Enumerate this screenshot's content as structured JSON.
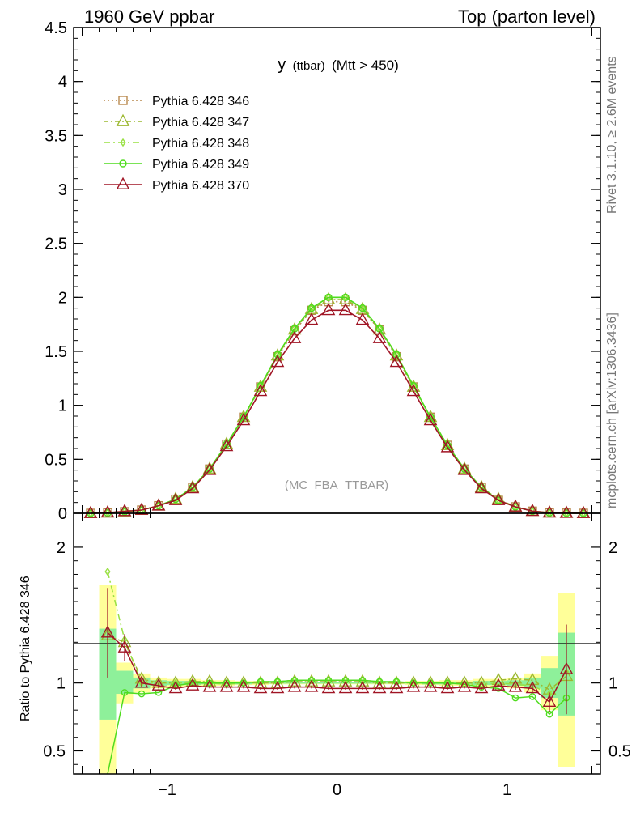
{
  "header": {
    "left": "1960 GeV ppbar",
    "right": "Top (parton level)"
  },
  "side_labels": {
    "rivet": "Rivet 3.1.10, ≥ 2.6M events",
    "mcplots": "mcplots.cern.ch [arXiv:1306.3436]"
  },
  "chart_data": [
    {
      "type": "line",
      "title": "y (ttbar) (Mtt > 450)",
      "title_main": "y",
      "title_sub": "(ttbar)",
      "title_rest": "(Mtt > 450)",
      "annotation": "(MC_FBA_TTBAR)",
      "xlabel": "",
      "ylabel": "",
      "xlim": [
        -1.55,
        1.55
      ],
      "ylim": [
        0,
        4.5
      ],
      "yticks": [
        "0",
        "0.5",
        "1",
        "1.5",
        "2",
        "2.5",
        "3",
        "3.5",
        "4",
        "4.5"
      ],
      "x": [
        -1.45,
        -1.35,
        -1.25,
        -1.15,
        -1.05,
        -0.95,
        -0.85,
        -0.75,
        -0.65,
        -0.55,
        -0.45,
        -0.35,
        -0.25,
        -0.15,
        -0.05,
        0.05,
        0.15,
        0.25,
        0.35,
        0.45,
        0.55,
        0.65,
        0.75,
        0.85,
        0.95,
        1.05,
        1.15,
        1.25,
        1.35,
        1.45
      ],
      "series": [
        {
          "name": "Pythia 6.428 346",
          "color": "#b8884d",
          "dash": "2,3",
          "marker": "square",
          "values": [
            0.0,
            0.005,
            0.015,
            0.03,
            0.07,
            0.13,
            0.24,
            0.41,
            0.64,
            0.89,
            1.17,
            1.45,
            1.69,
            1.88,
            1.96,
            1.96,
            1.88,
            1.7,
            1.45,
            1.17,
            0.89,
            0.63,
            0.41,
            0.24,
            0.12,
            0.06,
            0.02,
            0.005,
            0.002,
            0.0
          ]
        },
        {
          "name": "Pythia 6.428 347",
          "color": "#9cb830",
          "dash": "6,3,2,3",
          "marker": "triangle",
          "values": [
            0.0,
            0.005,
            0.015,
            0.03,
            0.07,
            0.13,
            0.24,
            0.41,
            0.64,
            0.89,
            1.17,
            1.46,
            1.7,
            1.89,
            1.98,
            1.98,
            1.89,
            1.7,
            1.46,
            1.17,
            0.89,
            0.63,
            0.41,
            0.24,
            0.13,
            0.06,
            0.02,
            0.006,
            0.002,
            0.0
          ]
        },
        {
          "name": "Pythia 6.428 348",
          "color": "#98e042",
          "dash": "8,4,2,4",
          "marker": "diamond",
          "values": [
            0.0,
            0.007,
            0.02,
            0.03,
            0.07,
            0.13,
            0.24,
            0.41,
            0.64,
            0.89,
            1.18,
            1.47,
            1.71,
            1.9,
            2.0,
            2.0,
            1.9,
            1.71,
            1.47,
            1.18,
            0.89,
            0.63,
            0.41,
            0.24,
            0.12,
            0.06,
            0.02,
            0.005,
            0.002,
            0.0
          ]
        },
        {
          "name": "Pythia 6.428 349",
          "color": "#4fdc1e",
          "dash": "",
          "marker": "circle",
          "values": [
            0.0,
            0.003,
            0.014,
            0.03,
            0.07,
            0.13,
            0.24,
            0.41,
            0.64,
            0.89,
            1.18,
            1.47,
            1.71,
            1.9,
            2.0,
            2.0,
            1.9,
            1.71,
            1.47,
            1.18,
            0.89,
            0.63,
            0.41,
            0.24,
            0.12,
            0.06,
            0.02,
            0.004,
            0.001,
            0.0
          ]
        },
        {
          "name": "Pythia 6.428 370",
          "color": "#a01525",
          "dash": "",
          "marker": "triangle",
          "values": [
            0.0,
            0.006,
            0.018,
            0.03,
            0.07,
            0.12,
            0.23,
            0.4,
            0.62,
            0.86,
            1.13,
            1.4,
            1.62,
            1.79,
            1.88,
            1.88,
            1.79,
            1.62,
            1.4,
            1.13,
            0.86,
            0.61,
            0.4,
            0.23,
            0.12,
            0.06,
            0.02,
            0.005,
            0.002,
            0.0
          ]
        }
      ]
    },
    {
      "type": "line",
      "title": "",
      "xlabel": "",
      "ylabel": "Ratio to Pythia 6.428 346",
      "xlim": [
        -1.55,
        1.55
      ],
      "ylim": [
        0.33,
        2.25
      ],
      "yticks": [
        "0.5",
        "1",
        "2"
      ],
      "xticks": [
        "−1",
        "0",
        "1"
      ],
      "x": [
        -1.35,
        -1.25,
        -1.15,
        -1.05,
        -0.95,
        -0.85,
        -0.75,
        -0.65,
        -0.55,
        -0.45,
        -0.35,
        -0.25,
        -0.15,
        -0.05,
        0.05,
        0.15,
        0.25,
        0.35,
        0.45,
        0.55,
        0.65,
        0.75,
        0.85,
        0.95,
        1.05,
        1.15,
        1.25,
        1.35
      ],
      "bands": {
        "yellow": [
          [
            0.27,
            1.72
          ],
          [
            0.85,
            1.15
          ],
          [
            0.93,
            1.07
          ],
          [
            0.96,
            1.04
          ],
          [
            0.97,
            1.03
          ],
          [
            0.97,
            1.03
          ],
          [
            0.98,
            1.02
          ],
          [
            0.98,
            1.02
          ],
          [
            0.985,
            1.015
          ],
          [
            0.985,
            1.015
          ],
          [
            0.99,
            1.01
          ],
          [
            0.99,
            1.01
          ],
          [
            0.99,
            1.01
          ],
          [
            0.99,
            1.01
          ],
          [
            0.99,
            1.01
          ],
          [
            0.99,
            1.01
          ],
          [
            0.99,
            1.01
          ],
          [
            0.99,
            1.01
          ],
          [
            0.985,
            1.015
          ],
          [
            0.985,
            1.015
          ],
          [
            0.98,
            1.02
          ],
          [
            0.98,
            1.02
          ],
          [
            0.97,
            1.03
          ],
          [
            0.97,
            1.03
          ],
          [
            0.96,
            1.04
          ],
          [
            0.93,
            1.07
          ],
          [
            0.8,
            1.2
          ],
          [
            0.38,
            1.66
          ]
        ],
        "green": [
          [
            0.73,
            1.4
          ],
          [
            0.92,
            1.09
          ],
          [
            0.96,
            1.04
          ],
          [
            0.98,
            1.02
          ],
          [
            0.985,
            1.015
          ],
          [
            0.985,
            1.015
          ],
          [
            0.99,
            1.01
          ],
          [
            0.99,
            1.01
          ],
          [
            0.99,
            1.01
          ],
          [
            0.995,
            1.005
          ],
          [
            0.995,
            1.005
          ],
          [
            0.995,
            1.005
          ],
          [
            0.995,
            1.005
          ],
          [
            0.995,
            1.005
          ],
          [
            0.995,
            1.005
          ],
          [
            0.995,
            1.005
          ],
          [
            0.995,
            1.005
          ],
          [
            0.995,
            1.005
          ],
          [
            0.995,
            1.005
          ],
          [
            0.99,
            1.01
          ],
          [
            0.99,
            1.01
          ],
          [
            0.99,
            1.01
          ],
          [
            0.985,
            1.015
          ],
          [
            0.985,
            1.015
          ],
          [
            0.98,
            1.02
          ],
          [
            0.96,
            1.04
          ],
          [
            0.89,
            1.11
          ],
          [
            0.76,
            1.37
          ]
        ]
      },
      "series": [
        {
          "name": "Pythia 6.428 347",
          "color": "#9cb830",
          "dash": "6,3,2,3",
          "marker": "triangle",
          "values": [
            1.35,
            1.3,
            1.03,
            1.0,
            1.0,
            1.01,
            1.01,
            1.0,
            1.0,
            1.0,
            1.0,
            1.01,
            1.01,
            1.01,
            1.01,
            1.01,
            1.0,
            1.0,
            1.0,
            1.0,
            1.0,
            1.0,
            1.0,
            1.02,
            1.03,
            1.02,
            0.95,
            1.05
          ]
        },
        {
          "name": "Pythia 6.428 348",
          "color": "#98e042",
          "dash": "8,4,2,4",
          "marker": "diamond",
          "values": [
            1.82,
            1.32,
            1.0,
            1.0,
            1.0,
            1.0,
            1.0,
            0.99,
            1.0,
            1.01,
            1.01,
            1.02,
            1.02,
            1.02,
            1.02,
            1.02,
            1.01,
            1.01,
            1.0,
            1.0,
            1.0,
            0.99,
            0.99,
            1.0,
            0.99,
            0.98,
            0.92,
            1.08
          ]
        },
        {
          "name": "Pythia 6.428 349",
          "color": "#4fdc1e",
          "dash": "",
          "marker": "circle",
          "values": [
            0.3,
            0.93,
            0.92,
            0.93,
            0.98,
            1.0,
            1.0,
            1.0,
            1.0,
            1.01,
            1.01,
            1.02,
            1.02,
            1.02,
            1.02,
            1.02,
            1.01,
            1.01,
            1.0,
            1.0,
            1.0,
            0.99,
            0.97,
            0.96,
            0.89,
            0.9,
            0.77,
            0.89
          ]
        },
        {
          "name": "Pythia 6.428 370",
          "color": "#a01525",
          "dash": "",
          "marker": "triangle",
          "values": [
            1.37,
            1.26,
            1.0,
            0.98,
            0.96,
            0.98,
            0.97,
            0.97,
            0.97,
            0.96,
            0.96,
            0.97,
            0.97,
            0.96,
            0.96,
            0.96,
            0.96,
            0.96,
            0.97,
            0.97,
            0.96,
            0.97,
            0.96,
            0.98,
            0.97,
            0.96,
            0.86,
            1.1
          ]
        }
      ],
      "errors_370": [
        0.33,
        0.1,
        0.03,
        0.02,
        0.01,
        0.01,
        0.01,
        0.01,
        0.01,
        0.01,
        0.01,
        0.01,
        0.01,
        0.01,
        0.01,
        0.01,
        0.01,
        0.01,
        0.01,
        0.01,
        0.01,
        0.01,
        0.01,
        0.01,
        0.02,
        0.03,
        0.07,
        0.33
      ]
    }
  ]
}
